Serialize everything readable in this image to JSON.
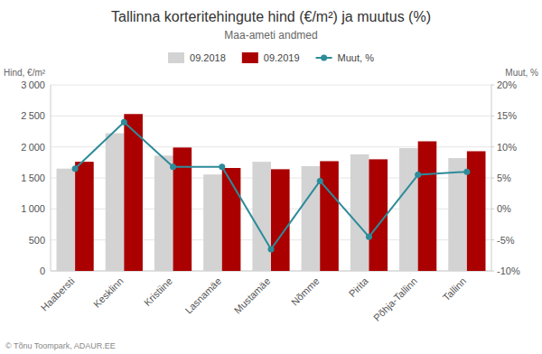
{
  "chart_data": {
    "type": "bar",
    "title": "Tallinna korteritehingute hind (€/m²) ja muutus (%)",
    "subtitle": "Maa-ameti andmed",
    "y_label": "Hind, €/m²",
    "y2_label": "Muut, %",
    "annotation": "© Tõnu Toompark, ADAUR.EE",
    "categories": [
      "Haabersti",
      "Kesklinn",
      "Kristiine",
      "Lasnamäe",
      "Mustamäe",
      "Nõmme",
      "Pirita",
      "Põhja-Tallinn",
      "Tallinn"
    ],
    "series": [
      {
        "name": "09.2018",
        "color": "#d3d3d3",
        "values": [
          1650,
          2220,
          1860,
          1555,
          1760,
          1690,
          1880,
          1980,
          1820
        ]
      },
      {
        "name": "09.2019",
        "color": "#aa0000",
        "values": [
          1760,
          2530,
          1990,
          1660,
          1640,
          1770,
          1800,
          2090,
          1930
        ]
      },
      {
        "name": "Muut, %",
        "color": "#2e8b9a",
        "type": "line",
        "marker": "circle",
        "axis": "y2",
        "values": [
          6.5,
          14.0,
          6.8,
          6.8,
          -6.5,
          4.5,
          -4.5,
          5.5,
          6.0
        ]
      }
    ],
    "ylim": [
      0,
      3000
    ],
    "yticks": [
      0,
      500,
      {
        "value": 1000,
        "label": "1 000"
      },
      {
        "value": 1500,
        "label": "1 500"
      },
      {
        "value": 2000,
        "label": "2 000"
      },
      {
        "value": 2500,
        "label": "2 500"
      },
      {
        "value": 3000,
        "label": "3 000"
      }
    ],
    "y2lim": [
      -10,
      20
    ],
    "y2ticks": [
      {
        "value": -10,
        "label": "-10%"
      },
      {
        "value": -5,
        "label": "-5%"
      },
      {
        "value": 0,
        "label": "0%"
      },
      {
        "value": 5,
        "label": "5%"
      },
      {
        "value": 10,
        "label": "10%"
      },
      {
        "value": 15,
        "label": "15%"
      },
      {
        "value": 20,
        "label": "20%"
      }
    ],
    "grid": true,
    "legend": "top"
  }
}
